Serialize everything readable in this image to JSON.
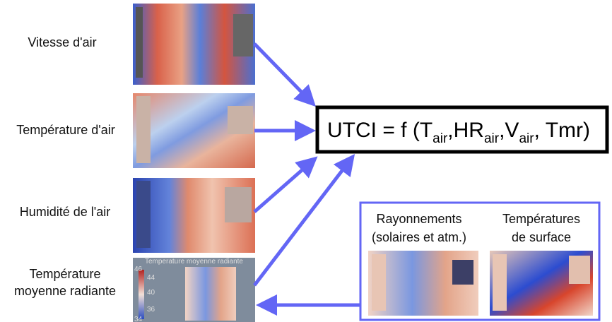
{
  "labels": [
    "Vitesse d'air",
    "Température d'air",
    "Humidité de l'air",
    "Température",
    "moyenne radiante"
  ],
  "formula": [
    "UTCI = f (T",
    "air",
    ",HR",
    "air",
    ",V",
    "air",
    ", Tmr)"
  ],
  "inset": {
    "title": "Temperature moyenne radiante",
    "scale": [
      "46",
      "44",
      "40",
      "36",
      "34"
    ]
  },
  "panel": {
    "left": [
      "Rayonnements",
      "(solaires et atm.)"
    ],
    "right": [
      "Températures",
      "de surface"
    ]
  }
}
